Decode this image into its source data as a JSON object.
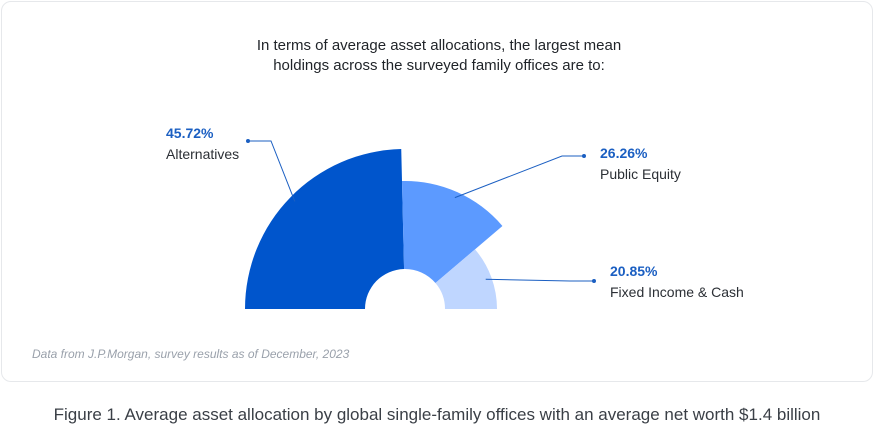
{
  "chart_data": {
    "type": "pie",
    "title_lines": [
      "In terms of average asset allocations, the largest mean",
      "holdings across the surveyed family offices are to:"
    ],
    "slices": [
      {
        "label": "Alternatives",
        "value": 45.72,
        "value_label": "45.72%",
        "color": "#0055cc"
      },
      {
        "label": "Public Equity",
        "value": 26.26,
        "value_label": "26.26%",
        "color": "#5c9aff"
      },
      {
        "label": "Fixed Income & Cash",
        "value": 20.85,
        "value_label": "20.85%",
        "color": "#bfd6ff"
      }
    ]
  },
  "note": "Data from J.P.Morgan, survey results as of December, 2023",
  "caption": "Figure 1. Average asset allocation by global single-family offices with an average net worth $1.4 billion"
}
